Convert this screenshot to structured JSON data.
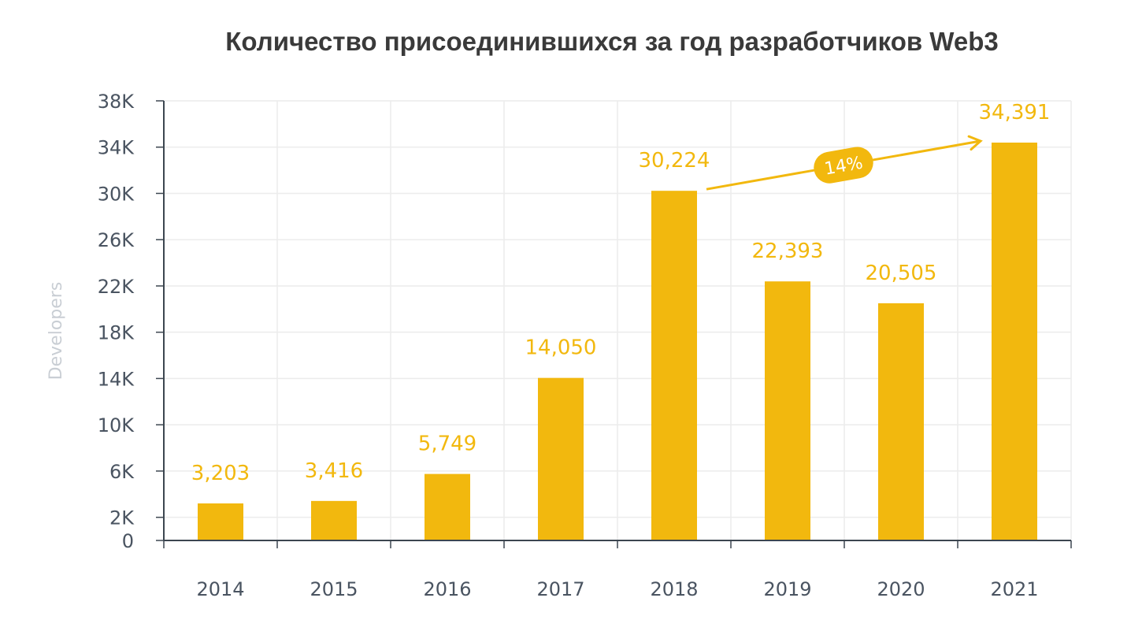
{
  "chart_data": {
    "type": "bar",
    "title": "Количество присоединившихся за год разработчиков Web3",
    "xlabel": "",
    "ylabel": "Developers",
    "categories": [
      "2014",
      "2015",
      "2016",
      "2017",
      "2018",
      "2019",
      "2020",
      "2021"
    ],
    "values": [
      3203,
      3416,
      5749,
      14050,
      30224,
      22393,
      20505,
      34391
    ],
    "value_labels": [
      "3,203",
      "3,416",
      "5,749",
      "14,050",
      "30,224",
      "22,393",
      "20,505",
      "34,391"
    ],
    "ylim": [
      0,
      40000
    ],
    "yticks": [
      0,
      2000,
      6000,
      10000,
      14000,
      18000,
      22000,
      26000,
      30000,
      34000,
      38000
    ],
    "ytick_labels": [
      "0",
      "2K",
      "6K",
      "10K",
      "14K",
      "18K",
      "22K",
      "26K",
      "30K",
      "34K",
      "38K"
    ],
    "grid": true,
    "annotation": {
      "text": "14%",
      "from": "2018",
      "to": "2021"
    },
    "colors": {
      "bar": "#f2b80e",
      "label": "#f2b80e",
      "grid": "#ececec",
      "axis": "#3c4650"
    }
  }
}
